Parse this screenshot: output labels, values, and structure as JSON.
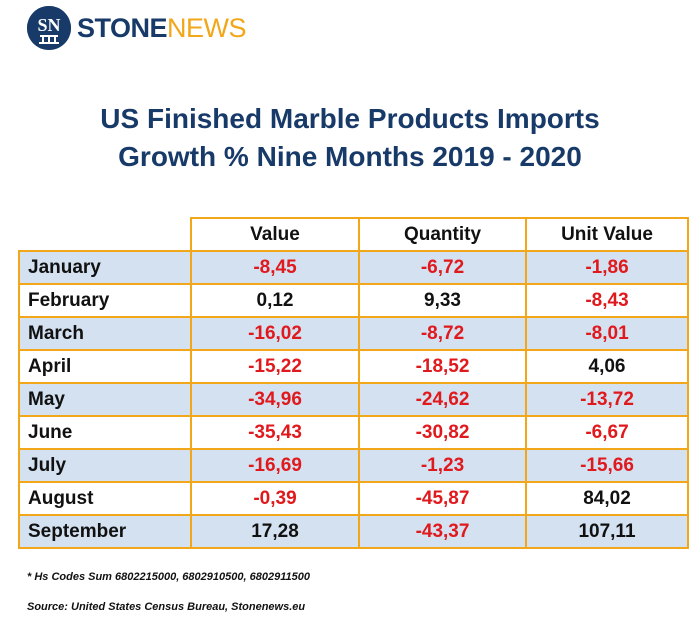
{
  "brand": {
    "name_part1": "STONE",
    "name_part2": "NEWS",
    "logo_mark": "SN",
    "brand_color": "#173a68",
    "accent_color": "#f2a71b"
  },
  "title": {
    "line1": "US Finished Marble Products Imports",
    "line2": "Growth % Nine Months 2019 - 2020"
  },
  "table": {
    "headers": [
      "Value",
      "Quantity",
      "Unit Value"
    ],
    "rows": [
      {
        "month": "January",
        "value": "-8,45",
        "quantity": "-6,72",
        "unit_value": "-1,86"
      },
      {
        "month": "February",
        "value": "0,12",
        "quantity": "9,33",
        "unit_value": "-8,43"
      },
      {
        "month": "March",
        "value": "-16,02",
        "quantity": "-8,72",
        "unit_value": "-8,01"
      },
      {
        "month": "April",
        "value": "-15,22",
        "quantity": "-18,52",
        "unit_value": "4,06"
      },
      {
        "month": "May",
        "value": "-34,96",
        "quantity": "-24,62",
        "unit_value": "-13,72"
      },
      {
        "month": "June",
        "value": "-35,43",
        "quantity": "-30,82",
        "unit_value": "-6,67"
      },
      {
        "month": "July",
        "value": "-16,69",
        "quantity": "-1,23",
        "unit_value": "-15,66"
      },
      {
        "month": "August",
        "value": "-0,39",
        "quantity": "-45,87",
        "unit_value": "84,02"
      },
      {
        "month": "September",
        "value": "17,28",
        "quantity": "-43,37",
        "unit_value": "107,11"
      }
    ],
    "colors": {
      "negative": "#e0191d",
      "positive": "#111111",
      "row_shade": "#d3e1f1",
      "border": "#f2a71b"
    }
  },
  "footnote": "* Hs Codes Sum 6802215000, 6802910500, 6802911500",
  "source": "Source: United States Census Bureau, Stonenews.eu"
}
